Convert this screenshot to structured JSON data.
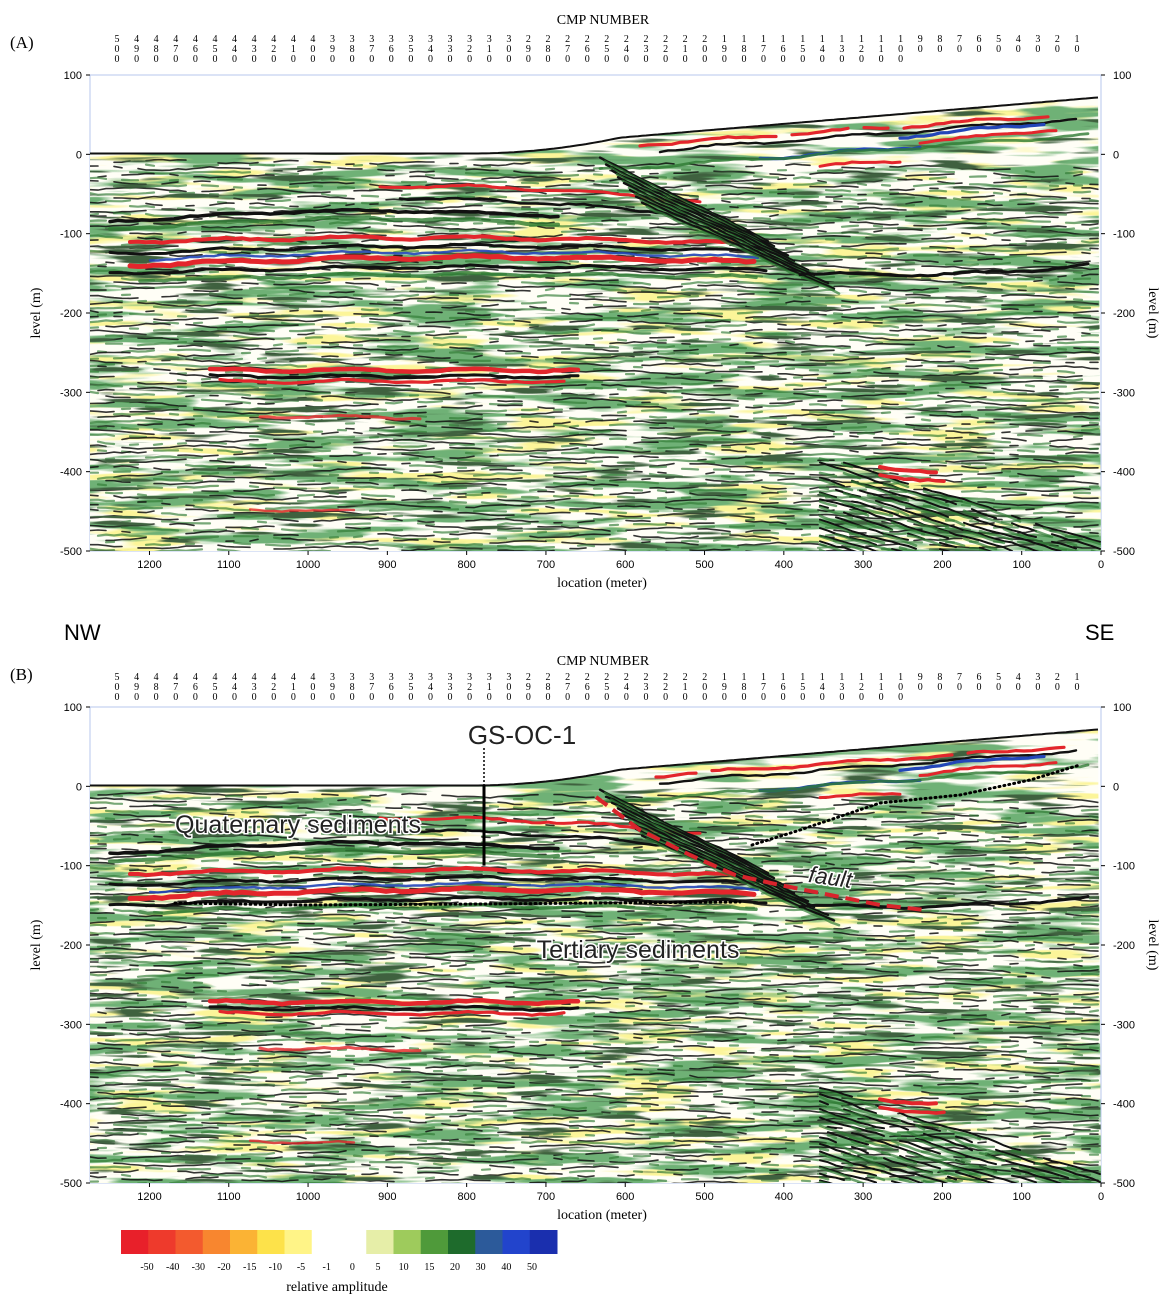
{
  "panels": [
    {
      "letter": "(A)",
      "cmp_title": "CMP NUMBER",
      "annotations": null
    },
    {
      "letter": "(B)",
      "cmp_title": "CMP NUMBER",
      "annotations": {
        "well": "GS-OC-1",
        "quaternary": "Quaternary sediments",
        "tertiary": "Tertiary sediments",
        "fault": "fault"
      }
    }
  ],
  "directions": {
    "left": "NW",
    "right": "SE"
  },
  "cmp_numbers": [
    "500",
    "490",
    "480",
    "470",
    "460",
    "450",
    "440",
    "430",
    "420",
    "410",
    "400",
    "390",
    "380",
    "370",
    "360",
    "350",
    "340",
    "330",
    "320",
    "310",
    "300",
    "290",
    "280",
    "270",
    "260",
    "250",
    "240",
    "230",
    "220",
    "210",
    "200",
    "190",
    "180",
    "170",
    "160",
    "150",
    "140",
    "130",
    "120",
    "110",
    "100",
    "90",
    "80",
    "70",
    "60",
    "50",
    "40",
    "30",
    "20",
    "10"
  ],
  "x_axis": {
    "label": "location (meter)",
    "ticks": [
      "1200",
      "1100",
      "1000",
      "900",
      "800",
      "700",
      "600",
      "500",
      "400",
      "300",
      "200",
      "100",
      "0"
    ]
  },
  "y_axis": {
    "label": "level (m)",
    "ticks": [
      "100",
      "0",
      "-100",
      "-200",
      "-300",
      "-400",
      "-500"
    ]
  },
  "colorbar": {
    "label": "relative amplitude",
    "ticks": [
      "-50",
      "-40",
      "-30",
      "-20",
      "-15",
      "-10",
      "-5",
      "-1",
      "0",
      "5",
      "10",
      "15",
      "20",
      "30",
      "40",
      "50"
    ],
    "colors": [
      "#e8202a",
      "#ee3a2c",
      "#f35a2e",
      "#f8862f",
      "#fbb334",
      "#fde24a",
      "#fff487",
      "#ffffff",
      "#ffffff",
      "#e6eea8",
      "#9ecb5c",
      "#4f9a3a",
      "#1e6b2c",
      "#2c5a9a",
      "#2244cc",
      "#1a2fae"
    ]
  },
  "colors": {
    "red": "#e3262c",
    "yellow": "#f8e84a",
    "green": "#2e7a33",
    "black": "#111111",
    "blue": "#2346b8",
    "fault": "#d8242c"
  }
}
